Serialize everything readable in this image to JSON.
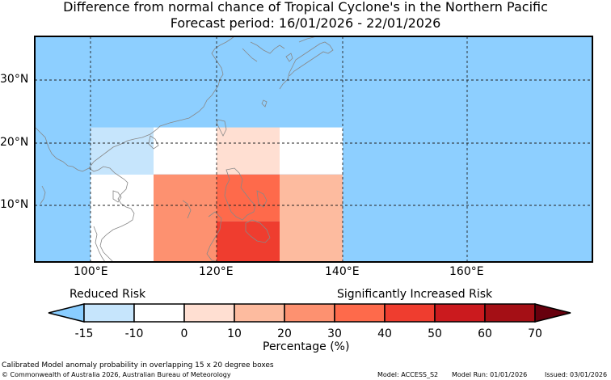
{
  "title": {
    "line1": "Difference from normal chance of Tropical Cyclone's in the Northern Pacific",
    "line2": "Forecast period: 16/01/2026 - 22/01/2026"
  },
  "map": {
    "lat_labels": [
      "30°N",
      "20°N",
      "10°N"
    ],
    "lon_labels": [
      "100°E",
      "120°E",
      "140°E",
      "160°E"
    ],
    "lon_range": [
      90,
      180
    ],
    "lat_range": [
      1,
      37
    ],
    "ocean_color": "#8dcfff",
    "boxes": [
      {
        "lon": [
          100,
          110
        ],
        "lat": [
          15,
          22.5
        ],
        "color": "#c6e5fc",
        "bin": "-15 to -10"
      },
      {
        "lon": [
          110,
          120
        ],
        "lat": [
          15,
          22.5
        ],
        "color": "#ffffff",
        "bin": "-10 to 0"
      },
      {
        "lon": [
          120,
          130
        ],
        "lat": [
          15,
          22.5
        ],
        "color": "#ffdfd2",
        "bin": "0 to 10"
      },
      {
        "lon": [
          130,
          140
        ],
        "lat": [
          15,
          22.5
        ],
        "color": "#ffffff",
        "bin": "-10 to 0"
      },
      {
        "lon": [
          100,
          110
        ],
        "lat": [
          1,
          15
        ],
        "color": "#ffffff",
        "bin": "-10 to 0"
      },
      {
        "lon": [
          110,
          120
        ],
        "lat": [
          1,
          15
        ],
        "color": "#fd9170",
        "bin": "20 to 30"
      },
      {
        "lon": [
          120,
          130
        ],
        "lat": [
          7.5,
          15
        ],
        "color": "#fe6a4b",
        "bin": "30 to 40"
      },
      {
        "lon": [
          120,
          130
        ],
        "lat": [
          1,
          7.5
        ],
        "color": "#ef3d2f",
        "bin": "40 to 50"
      },
      {
        "lon": [
          130,
          140
        ],
        "lat": [
          1,
          15
        ],
        "color": "#fdbb9f",
        "bin": "10 to 20"
      }
    ]
  },
  "legend": {
    "reduced_label": "Reduced Risk",
    "increased_label": "Significantly Increased Risk",
    "ticks": [
      "-15",
      "-10",
      "0",
      "10",
      "20",
      "30",
      "40",
      "50",
      "60",
      "70"
    ],
    "colors": [
      "#89cdff",
      "#c6e5fc",
      "#ffffff",
      "#ffdfd2",
      "#fdbb9f",
      "#fd9170",
      "#fe6a4b",
      "#ef3d2f",
      "#cb1a1e",
      "#a40f15",
      "#67000d"
    ],
    "unit_label": "Percentage (%)"
  },
  "footer": {
    "note": "Calibrated Model anomaly probability in overlapping 15 x 20 degree boxes",
    "copyright": "© Commonwealth of Australia 2026, Australian Bureau of Meteorology",
    "model": "Model: ACCESS_S2",
    "model_run": "Model Run: 01/01/2026",
    "issued": "Issued: 03/01/2026"
  }
}
